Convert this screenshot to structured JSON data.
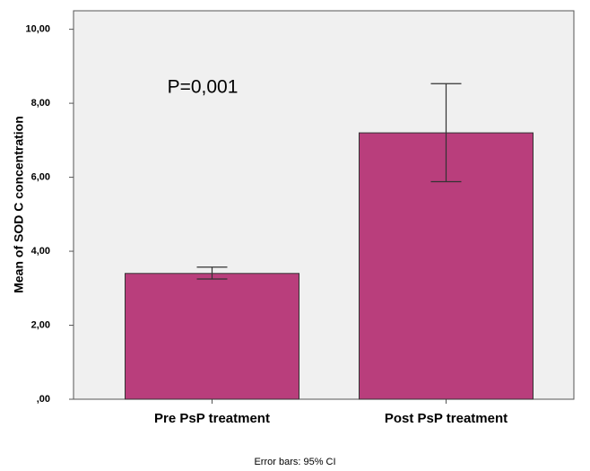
{
  "chart_data": {
    "type": "bar",
    "ylabel": "Mean of SOD C concentration",
    "annotation": "P=0,001",
    "note": "Error bars: 95% CI",
    "categories": [
      "Pre PsP treatment",
      "Post PsP treatment"
    ],
    "values": [
      3.4,
      7.2
    ],
    "ci": [
      [
        3.25,
        3.57
      ],
      [
        5.88,
        8.53
      ]
    ],
    "color": "#b93e7c",
    "ylim": [
      0,
      10.5
    ],
    "yticks": [
      {
        "value": 0,
        "label": ",00"
      },
      {
        "value": 2,
        "label": "2,00"
      },
      {
        "value": 4,
        "label": "4,00"
      },
      {
        "value": 6,
        "label": "6,00"
      },
      {
        "value": 8,
        "label": "8,00"
      },
      {
        "value": 10,
        "label": "10,00"
      }
    ]
  }
}
